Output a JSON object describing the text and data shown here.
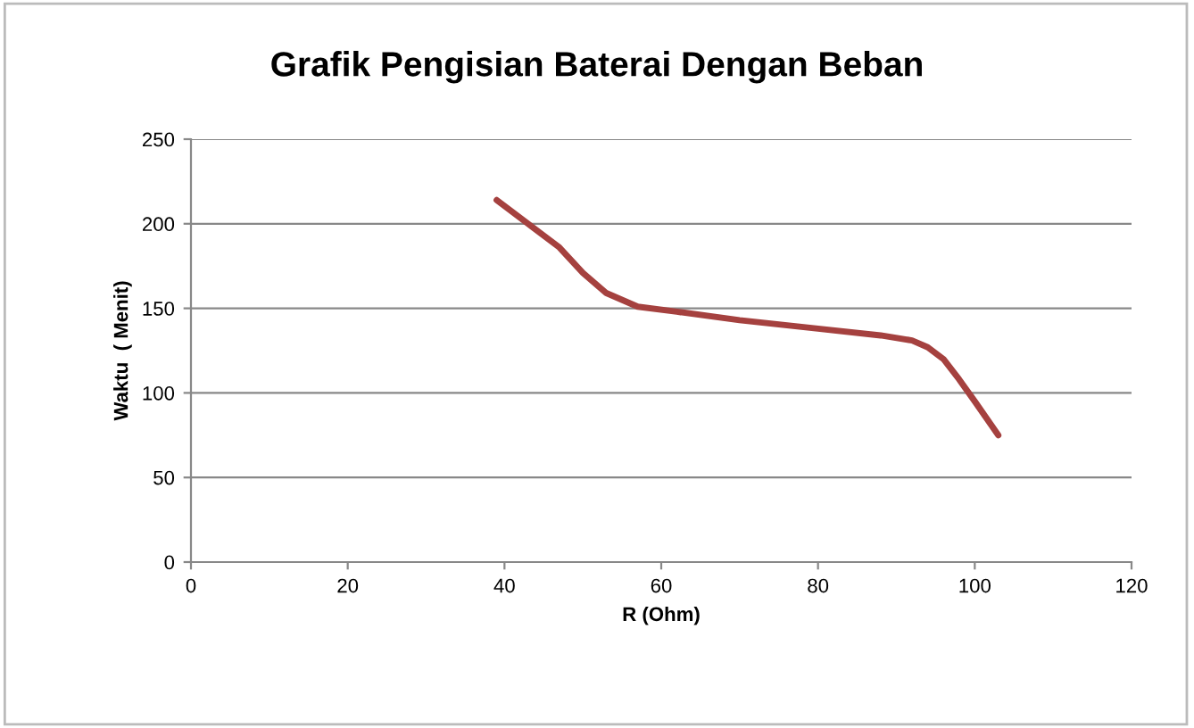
{
  "chart_data": {
    "type": "line",
    "title": "Grafik Pengisian Baterai Dengan Beban",
    "xlabel": "R (Ohm)",
    "ylabel": "Waktu  ( Menit)",
    "series": [
      {
        "color": "#a5413f",
        "x": [
          39,
          43,
          47,
          50,
          53,
          57,
          62,
          70,
          80,
          88,
          92,
          94,
          96,
          98,
          100,
          103
        ],
        "values": [
          214,
          200,
          186,
          171,
          159,
          151,
          148,
          143,
          138,
          134,
          131,
          127,
          120,
          108,
          95,
          75
        ]
      }
    ],
    "xlim": [
      0,
      120
    ],
    "xticks": [
      0,
      20,
      40,
      60,
      80,
      100,
      120
    ],
    "ylim": [
      0,
      250
    ],
    "yticks": [
      0,
      50,
      100,
      150,
      200,
      250
    ],
    "grid": "y",
    "marker": "none",
    "line_style": "solid"
  }
}
